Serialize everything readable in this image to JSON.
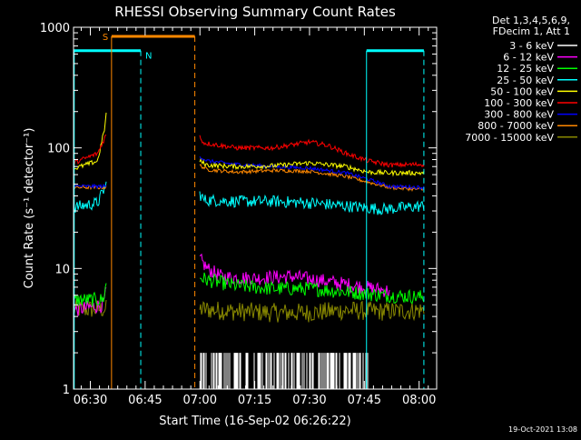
{
  "chart_data": {
    "type": "line",
    "title": "RHESSI Observing Summary Count Rates",
    "xlabel": "Start Time (16-Sep-02 06:26:22)",
    "ylabel": "Count Rate (s⁻¹ detector⁻¹)",
    "footer": "19-Oct-2021 13:08",
    "x_unit": "minutes since 06:00",
    "xlim": [
      25.4,
      124.8
    ],
    "ylim": [
      1,
      1000
    ],
    "log_y": true,
    "x_ticks": [
      {
        "value": 30,
        "label": "06:30"
      },
      {
        "value": 45,
        "label": "06:45"
      },
      {
        "value": 60,
        "label": "07:00"
      },
      {
        "value": 75,
        "label": "07:15"
      },
      {
        "value": 90,
        "label": "07:30"
      },
      {
        "value": 105,
        "label": "07:45"
      },
      {
        "value": 120,
        "label": "08:00"
      }
    ],
    "y_ticks": [
      {
        "value": 1,
        "label": "1"
      },
      {
        "value": 10,
        "label": "10"
      },
      {
        "value": 100,
        "label": "100"
      },
      {
        "value": 1000,
        "label": "1000"
      }
    ],
    "legend": {
      "placement": "right",
      "header": [
        "Det 1,3,4,5,6,9,",
        "FDecim 1, Att 1"
      ]
    },
    "series": [
      {
        "name": "3 - 6 keV",
        "color": "#ffffff",
        "noise": 0.0,
        "segments": [
          [
            [
              60,
              2.0
            ],
            [
              106,
              2.0
            ]
          ]
        ],
        "spiky": true
      },
      {
        "name": "6 - 12 keV",
        "color": "#ff00ff",
        "noise": 0.06,
        "segments": [
          [
            [
              25.4,
              4.5
            ],
            [
              33.5,
              5.0
            ],
            [
              34.4,
              6.5
            ]
          ],
          [
            [
              59.9,
              12
            ],
            [
              62,
              10
            ],
            [
              66,
              8.5
            ],
            [
              75,
              8.3
            ],
            [
              85,
              8.6
            ],
            [
              95,
              7.8
            ],
            [
              105,
              7.0
            ],
            [
              112,
              6.5
            ]
          ]
        ]
      },
      {
        "name": "12 - 25 keV",
        "color": "#00ff00",
        "noise": 0.06,
        "segments": [
          [
            [
              25.4,
              5.5
            ],
            [
              33.5,
              5.5
            ],
            [
              34.4,
              7.5
            ]
          ],
          [
            [
              59.9,
              8.5
            ],
            [
              62,
              8.0
            ],
            [
              70,
              7.2
            ],
            [
              80,
              6.8
            ],
            [
              90,
              6.8
            ],
            [
              100,
              6.4
            ],
            [
              110,
              6.0
            ],
            [
              121.3,
              5.8
            ]
          ]
        ]
      },
      {
        "name": "25 - 50 keV",
        "color": "#00ffff",
        "noise": 0.05,
        "segments": [
          [
            [
              25.4,
              32
            ],
            [
              32,
              35
            ],
            [
              34.4,
              50
            ]
          ],
          [
            [
              59.9,
              42
            ],
            [
              61,
              37
            ],
            [
              70,
              36
            ],
            [
              80,
              36
            ],
            [
              90,
              35
            ],
            [
              100,
              33
            ],
            [
              110,
              31
            ],
            [
              121.3,
              33
            ]
          ]
        ]
      },
      {
        "name": "50 - 100 keV",
        "color": "#ffff00",
        "noise": 0.02,
        "segments": [
          [
            [
              25.4,
              67
            ],
            [
              32,
              78
            ],
            [
              34.0,
              150
            ],
            [
              34.4,
              200
            ]
          ],
          [
            [
              59.9,
              78
            ],
            [
              62,
              72
            ],
            [
              70,
              70
            ],
            [
              80,
              71
            ],
            [
              90,
              75
            ],
            [
              100,
              70
            ],
            [
              106,
              63
            ],
            [
              112,
              62
            ],
            [
              121.3,
              62
            ]
          ]
        ]
      },
      {
        "name": "100 - 300 keV",
        "color": "#ff0000",
        "noise": 0.02,
        "segments": [
          [
            [
              25.4,
              75
            ],
            [
              32,
              90
            ],
            [
              34.4,
              130
            ]
          ],
          [
            [
              59.9,
              125
            ],
            [
              61,
              110
            ],
            [
              70,
              100
            ],
            [
              80,
              100
            ],
            [
              90,
              112
            ],
            [
              95,
              105
            ],
            [
              100,
              90
            ],
            [
              106,
              78
            ],
            [
              112,
              72
            ],
            [
              121.3,
              73
            ]
          ]
        ]
      },
      {
        "name": "300 - 800 keV",
        "color": "#0000ff",
        "noise": 0.015,
        "segments": [
          [
            [
              25.4,
              48
            ],
            [
              34.4,
              48
            ]
          ],
          [
            [
              59.9,
              85
            ],
            [
              62,
              78
            ],
            [
              70,
              73
            ],
            [
              80,
              70
            ],
            [
              90,
              68
            ],
            [
              100,
              62
            ],
            [
              106,
              55
            ],
            [
              112,
              48
            ],
            [
              121.3,
              47
            ]
          ]
        ]
      },
      {
        "name": "800 - 7000 keV",
        "color": "#ff8800",
        "noise": 0.015,
        "segments": [
          [
            [
              25.4,
              47
            ],
            [
              34.4,
              47
            ]
          ],
          [
            [
              59.9,
              72
            ],
            [
              62,
              66
            ],
            [
              70,
              63
            ],
            [
              80,
              65
            ],
            [
              90,
              64
            ],
            [
              100,
              58
            ],
            [
              106,
              52
            ],
            [
              112,
              47
            ],
            [
              121.3,
              45
            ]
          ]
        ]
      },
      {
        "name": "7000 - 15000 keV",
        "color": "#888800",
        "noise": 0.08,
        "segments": [
          [
            [
              25.4,
              4.6
            ],
            [
              34.4,
              4.6
            ]
          ],
          [
            [
              59.9,
              4.6
            ],
            [
              70,
              4.4
            ],
            [
              80,
              4.3
            ],
            [
              90,
              4.3
            ],
            [
              100,
              4.5
            ],
            [
              110,
              4.4
            ],
            [
              121.3,
              4.5
            ]
          ]
        ]
      }
    ],
    "annotations": {
      "attenuator_S": {
        "label": "S",
        "color": "#ff8800",
        "x_start": 35.8,
        "x_end": 58.6,
        "level": 840,
        "line_solid": 35.8,
        "line_dashed": 58.6
      },
      "night_N": {
        "label": "N",
        "color": "#00ffff",
        "x_start": 25.4,
        "x_end": 43.8,
        "level": 640,
        "line_solid": 25.6,
        "line_dashed": 43.8
      },
      "night_N2": {
        "color": "#00ffff",
        "x_start": 105.6,
        "x_end": 121.3,
        "level": 640,
        "line_solid": 105.6,
        "line_dashed": 121.3
      }
    }
  }
}
